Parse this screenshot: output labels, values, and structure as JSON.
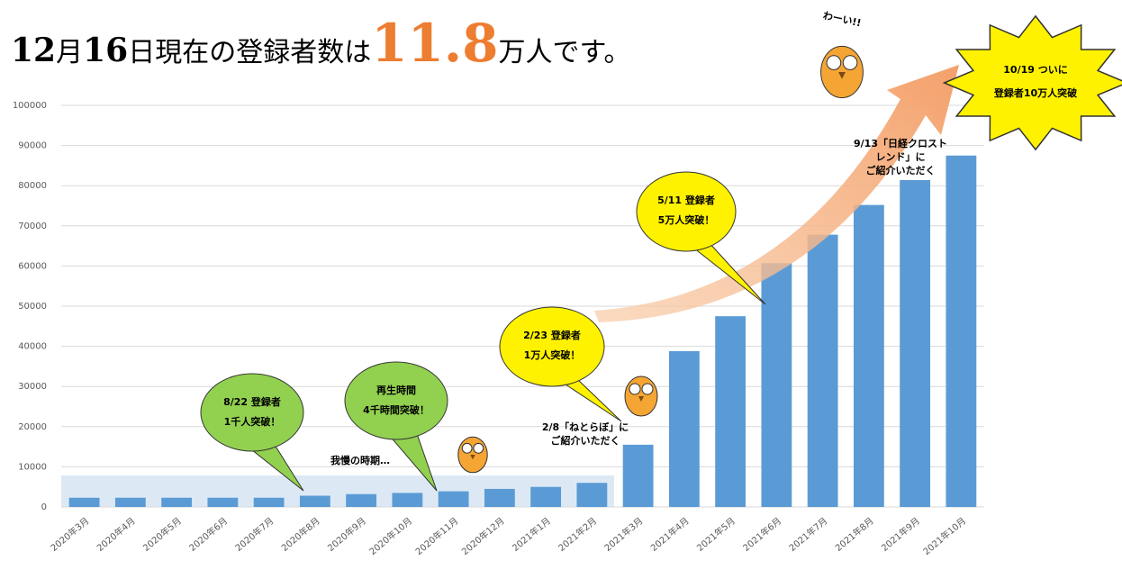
{
  "chart_data": {
    "type": "bar",
    "title_parts": [
      "12",
      "月",
      "16",
      "日現在の登録者数は",
      "11.8",
      "万人です。"
    ],
    "categories": [
      "2020年3月",
      "2020年4月",
      "2020年5月",
      "2020年6月",
      "2020年7月",
      "2020年8月",
      "2020年9月",
      "2020年10月",
      "2020年11月",
      "2020年12月",
      "2021年1月",
      "2021年2月",
      "2021年3月",
      "2021年4月",
      "2021年5月",
      "2021年6月",
      "2021年7月",
      "2021年8月",
      "2021年9月",
      "2021年10月"
    ],
    "values": [
      2300,
      2300,
      2300,
      2300,
      2300,
      2800,
      3200,
      3500,
      3900,
      4500,
      5000,
      6000,
      15500,
      38800,
      47500,
      60700,
      67800,
      75200,
      81400,
      87500
    ],
    "color": "#5b9bd5",
    "ylim": [
      0,
      100000
    ],
    "yticks": [
      0,
      10000,
      20000,
      30000,
      40000,
      50000,
      60000,
      70000,
      80000,
      90000,
      100000
    ],
    "grid": true,
    "annotations": [
      {
        "lines": [
          "8/22 登録者",
          "1千人突破！"
        ]
      },
      {
        "lines": [
          "再生時間",
          "4千時間突破！"
        ]
      },
      {
        "lines": [
          "2/23 登録者",
          "1万人突破！"
        ]
      },
      {
        "lines": [
          "5/11 登録者",
          "5万人突破！"
        ]
      },
      {
        "lines": [
          "10/19 ついに",
          "登録者10万人突破"
        ]
      },
      {
        "lines": [
          "9/13「日経クロスト",
          "レンド」に",
          "ご紹介いただく"
        ]
      },
      {
        "lines": [
          "2/8「ねとらぼ」に",
          "ご紹介いただく"
        ]
      },
      {
        "lines": [
          "我慢の時期…"
        ]
      },
      {
        "lines": [
          "わーい!!"
        ]
      }
    ]
  }
}
